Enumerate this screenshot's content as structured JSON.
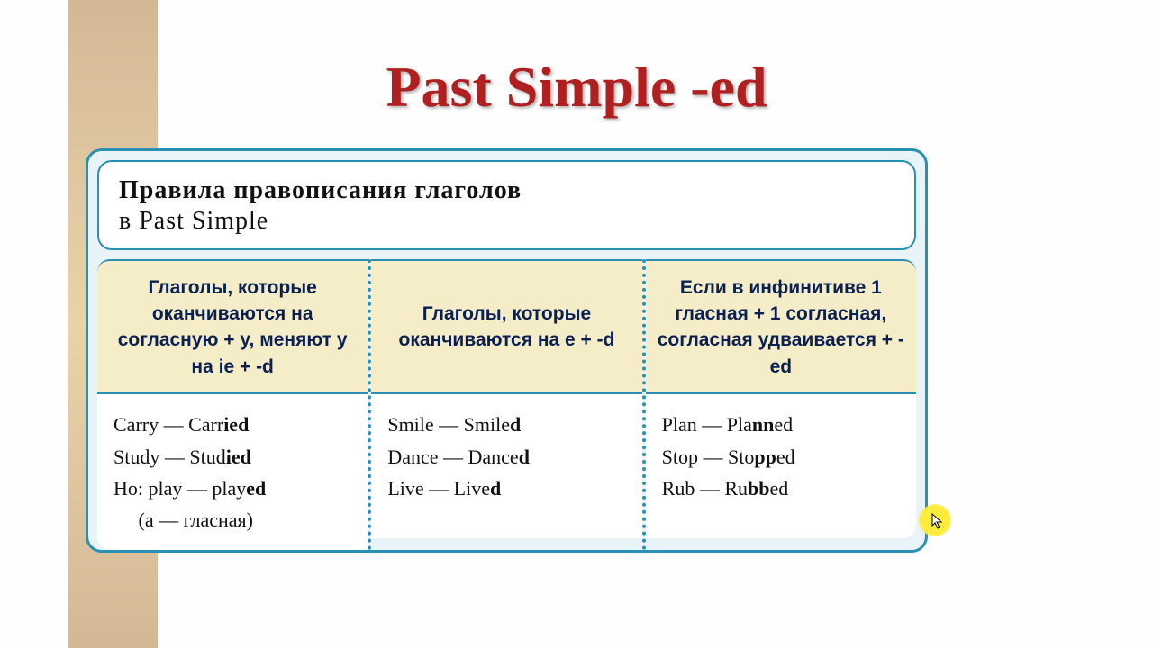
{
  "title": "Past Simple -ed",
  "header": {
    "line1": "Правила правописания глаголов",
    "line2": "в Past Simple"
  },
  "columns": [
    {
      "heading": "Глаголы, которые оканчиваются на согласную + y, меняют y на ie + -d",
      "examples_html": "Carry — Carr<b>ied</b><br>Study — Stud<b>ied</b><br>Ho: play — play<b>ed</b><br>&nbsp;&nbsp;&nbsp;&nbsp;&nbsp;(a — гласная)"
    },
    {
      "heading": "Глаголы, которые оканчиваются на e + -d",
      "examples_html": "Smile — Smile<b>d</b><br>Dance — Dance<b>d</b><br>Live — Live<b>d</b>"
    },
    {
      "heading": "Если в инфинитиве 1 гласная + 1 согласная, согласная удваивается + -ed",
      "examples_html": "Plan — Pla<b>nn</b>ed<br>Stop — Sto<b>pp</b>ed<br>Rub — Ru<b>bb</b>ed"
    }
  ],
  "colors": {
    "title": "#b02020",
    "border": "#2a8fb0",
    "header_bg": "#f5ecc8",
    "heading_text": "#0a2050",
    "panel_bg": "#e8f4f8",
    "bar_bg": "#d4b896"
  }
}
